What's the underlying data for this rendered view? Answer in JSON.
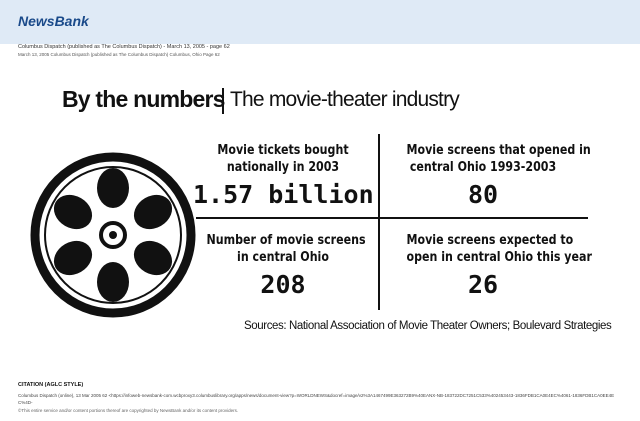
{
  "header": {
    "logo": "NewsBank",
    "publication": "Columbus Dispatch (published as The Columbus Dispatch) - March 13, 2005 - page 62",
    "meta": "March 13, 2005    Columbus Dispatch (published as The Columbus Dispatch)    Columbus, Ohio    Page 62"
  },
  "article": {
    "title": "By the numbers",
    "subtitle": "The movie-theater industry",
    "stats": [
      {
        "label": [
          "Movie tickets bought",
          "nationally in 2003"
        ],
        "value": "1.57 billion"
      },
      {
        "label": [
          "Movie screens that opened in",
          "central Ohio 1993-2003"
        ],
        "value": "80"
      },
      {
        "label": [
          "Number of movie screens",
          "in central Ohio"
        ],
        "value": "208"
      },
      {
        "label": [
          "Movie screens expected to",
          "open in central Ohio this year"
        ],
        "value": "26"
      }
    ],
    "sources": "Sources: National Association of Movie Theater Owners; Boulevard Strategies"
  },
  "citation": {
    "heading": "CITATION (AGLC STYLE)",
    "text": "Columbus Dispatch (online), 13 Mar 2005 62 <https://infoweb-newsbank-com.wcbproxy3.columbuslibrary.org/apps/news/document-view?p=WORLDNEWS&docref=image/v2%3A1467499E363272B9%40EANX-NB-183722DC7251C533%402453443-1836FDB1CA0E4EC%4061-1836FDB1CA0EE4EC%4D-",
    "copyright": "©This entire service and/or content portions thereof are copyrighted by NewsBank and/or its content providers."
  }
}
